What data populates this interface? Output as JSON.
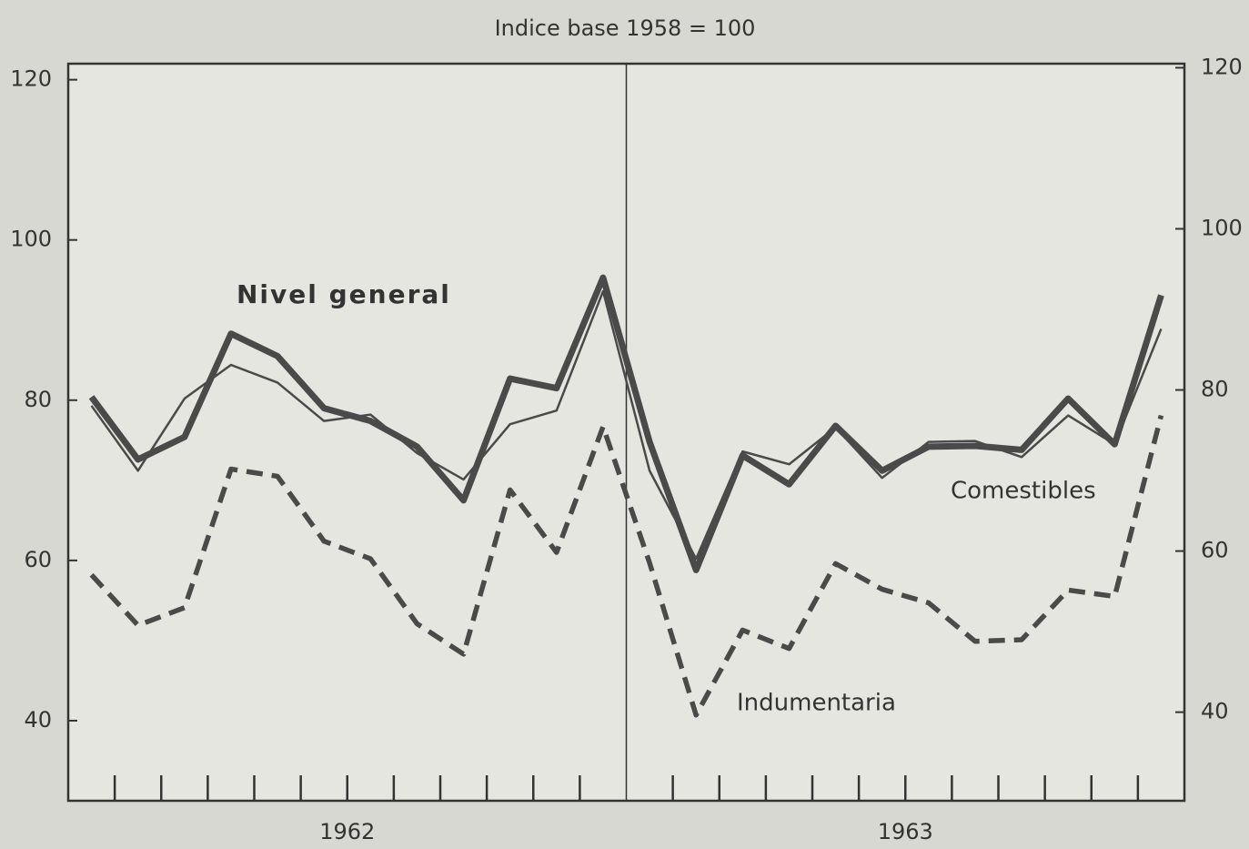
{
  "chart_data": {
    "type": "line",
    "title": "Indice base 1958 = 100",
    "categories": [
      null,
      null,
      null,
      null,
      null,
      null,
      null,
      null,
      null,
      null,
      null,
      null,
      null,
      null,
      null,
      null,
      null,
      null,
      null,
      null,
      null,
      null,
      null,
      null
    ],
    "group_labels": [
      "1962",
      "1963"
    ],
    "series": [
      {
        "name": "Nivel general",
        "color": "#4a4a4a",
        "style": "thick",
        "values": [
          80.4,
          72.6,
          75.4,
          88.3,
          85.5,
          79.0,
          77.4,
          74.2,
          67.5,
          82.7,
          81.5,
          95.3,
          74.8,
          58.8,
          73.1,
          69.5,
          76.8,
          71.2,
          74.2,
          74.3,
          73.8,
          80.2,
          74.5,
          93.1
        ]
      },
      {
        "name": "Comestibles",
        "color": "#4a4a4a",
        "style": "thin",
        "values": [
          79.3,
          71.2,
          80.2,
          84.4,
          82.2,
          77.4,
          78.2,
          73.4,
          70.1,
          77.0,
          78.7,
          93.6,
          71.2,
          60.2,
          73.6,
          72.0,
          76.6,
          70.3,
          74.8,
          74.9,
          72.9,
          78.1,
          74.5,
          88.9
        ]
      },
      {
        "name": "Indumentaria",
        "color": "#4a4a4a",
        "style": "dashed",
        "values": [
          58.2,
          51.9,
          54.1,
          71.4,
          70.5,
          62.4,
          60.2,
          52.1,
          48.3,
          68.8,
          61.0,
          76.7,
          59.7,
          40.7,
          51.3,
          49.0,
          59.6,
          56.4,
          54.7,
          49.9,
          50.1,
          56.3,
          55.5,
          78.1
        ]
      }
    ],
    "ylim": [
      30,
      122
    ],
    "yticks": [
      40,
      60,
      80,
      100,
      120
    ],
    "y2lim": [
      29,
      120.5
    ],
    "y2ticks": [
      40,
      60,
      80,
      100,
      120
    ],
    "grid": false
  }
}
